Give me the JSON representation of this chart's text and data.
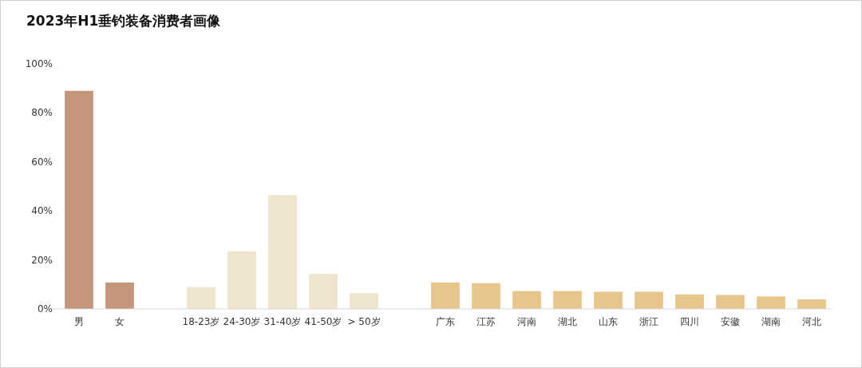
{
  "chart_data": {
    "type": "bar",
    "title": "2023年H1垂钓装备消费者画像",
    "categories": [
      "男",
      "女",
      null,
      "18-23岁",
      "24-30岁",
      "31-40岁",
      "41-50岁",
      "> 50岁",
      null,
      "广东",
      "江苏",
      "河南",
      "湖北",
      "山东",
      "浙江",
      "四川",
      "安徽",
      "湖南",
      "河北"
    ],
    "values": [
      89,
      10.8,
      null,
      8.9,
      23.5,
      46.4,
      14.3,
      6.4,
      null,
      10.8,
      10.5,
      7.3,
      7.3,
      7.0,
      7.0,
      5.9,
      5.7,
      5.1,
      3.9
    ],
    "colors": [
      "#c4967a",
      "#c4967a",
      null,
      "#efe4cd",
      "#efe4cd",
      "#efe4cd",
      "#efe4cd",
      "#efe4cd",
      null,
      "#e8c58a",
      "#e8c58a",
      "#e8c58a",
      "#e8c58a",
      "#e8c58a",
      "#e8c58a",
      "#e8c58a",
      "#e8c58a",
      "#e8c58a",
      "#e8c58a"
    ],
    "ylim": [
      0,
      100
    ],
    "yticks": [
      {
        "value": 0,
        "label": "0%"
      },
      {
        "value": 20,
        "label": "20%"
      },
      {
        "value": 40,
        "label": "40%"
      },
      {
        "value": 60,
        "label": "60%"
      },
      {
        "value": 80,
        "label": "80%"
      },
      {
        "value": 100,
        "label": "100%"
      }
    ]
  }
}
